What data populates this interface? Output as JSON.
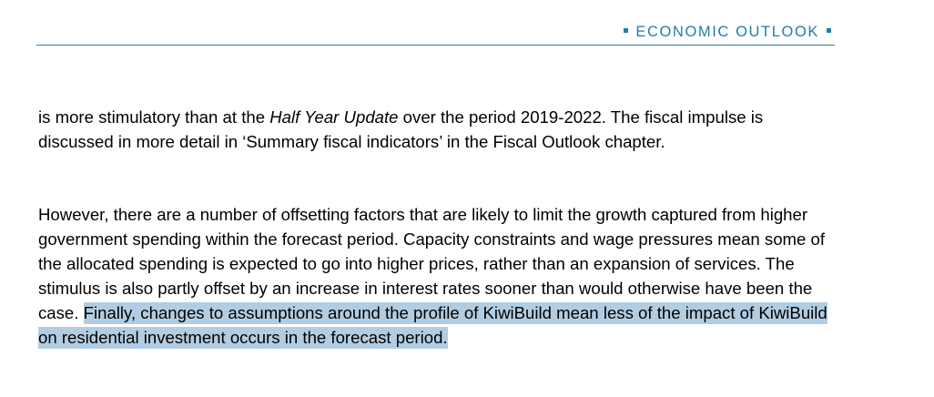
{
  "header": {
    "title": "ECONOMIC OUTLOOK"
  },
  "paragraph1": {
    "before_italic": "is more stimulatory than at the ",
    "italic": "Half Year Update",
    "after_italic": " over the period 2019-2022. The fiscal impulse is discussed in more detail in ‘Summary fiscal indicators’ in the Fiscal Outlook chapter."
  },
  "paragraph2": {
    "plain": "However, there are a number of offsetting factors that are likely to limit the growth captured from higher government spending within the forecast period. Capacity constraints and wage pressures mean some of the allocated spending is expected to go into higher prices, rather than an expansion of services. The stimulus is also partly offset by an increase in interest rates sooner than would otherwise have been the case. ",
    "selected": "Finally, changes to assumptions around the profile of KiwiBuild mean less of the impact of KiwiBuild on residential investment occurs in the forecast period."
  },
  "colors": {
    "accent": "#1f7ea6",
    "selection": "#b2cde2"
  }
}
